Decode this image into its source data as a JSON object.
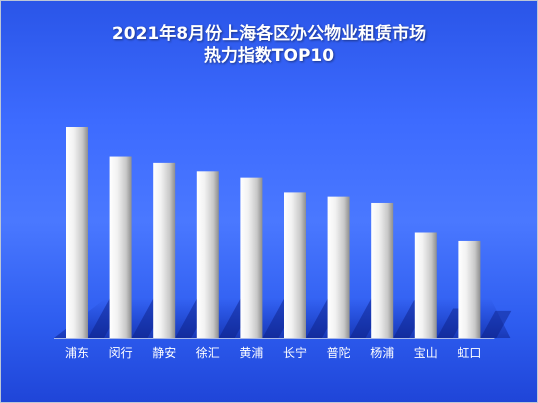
{
  "chart_data": {
    "type": "bar",
    "title": [
      "2021年8月份上海各区办公物业租赁市场",
      "热力指数TOP10"
    ],
    "xlabel": "",
    "ylabel": "",
    "categories": [
      "浦东",
      "闵行",
      "静安",
      "徐汇",
      "黄浦",
      "长宁",
      "普陀",
      "杨浦",
      "宝山",
      "虹口"
    ],
    "values": [
      100,
      86,
      83,
      79,
      76,
      69,
      67,
      64,
      50,
      46
    ],
    "ylim": [
      0,
      100
    ],
    "grid": false,
    "legend": "none",
    "colors": {
      "background_top": "#2a55e8",
      "background_bottom": "#1f45d8",
      "bar_light": "#ffffff",
      "bar_dark": "#9a9a9a",
      "label": "#ffffff"
    }
  }
}
